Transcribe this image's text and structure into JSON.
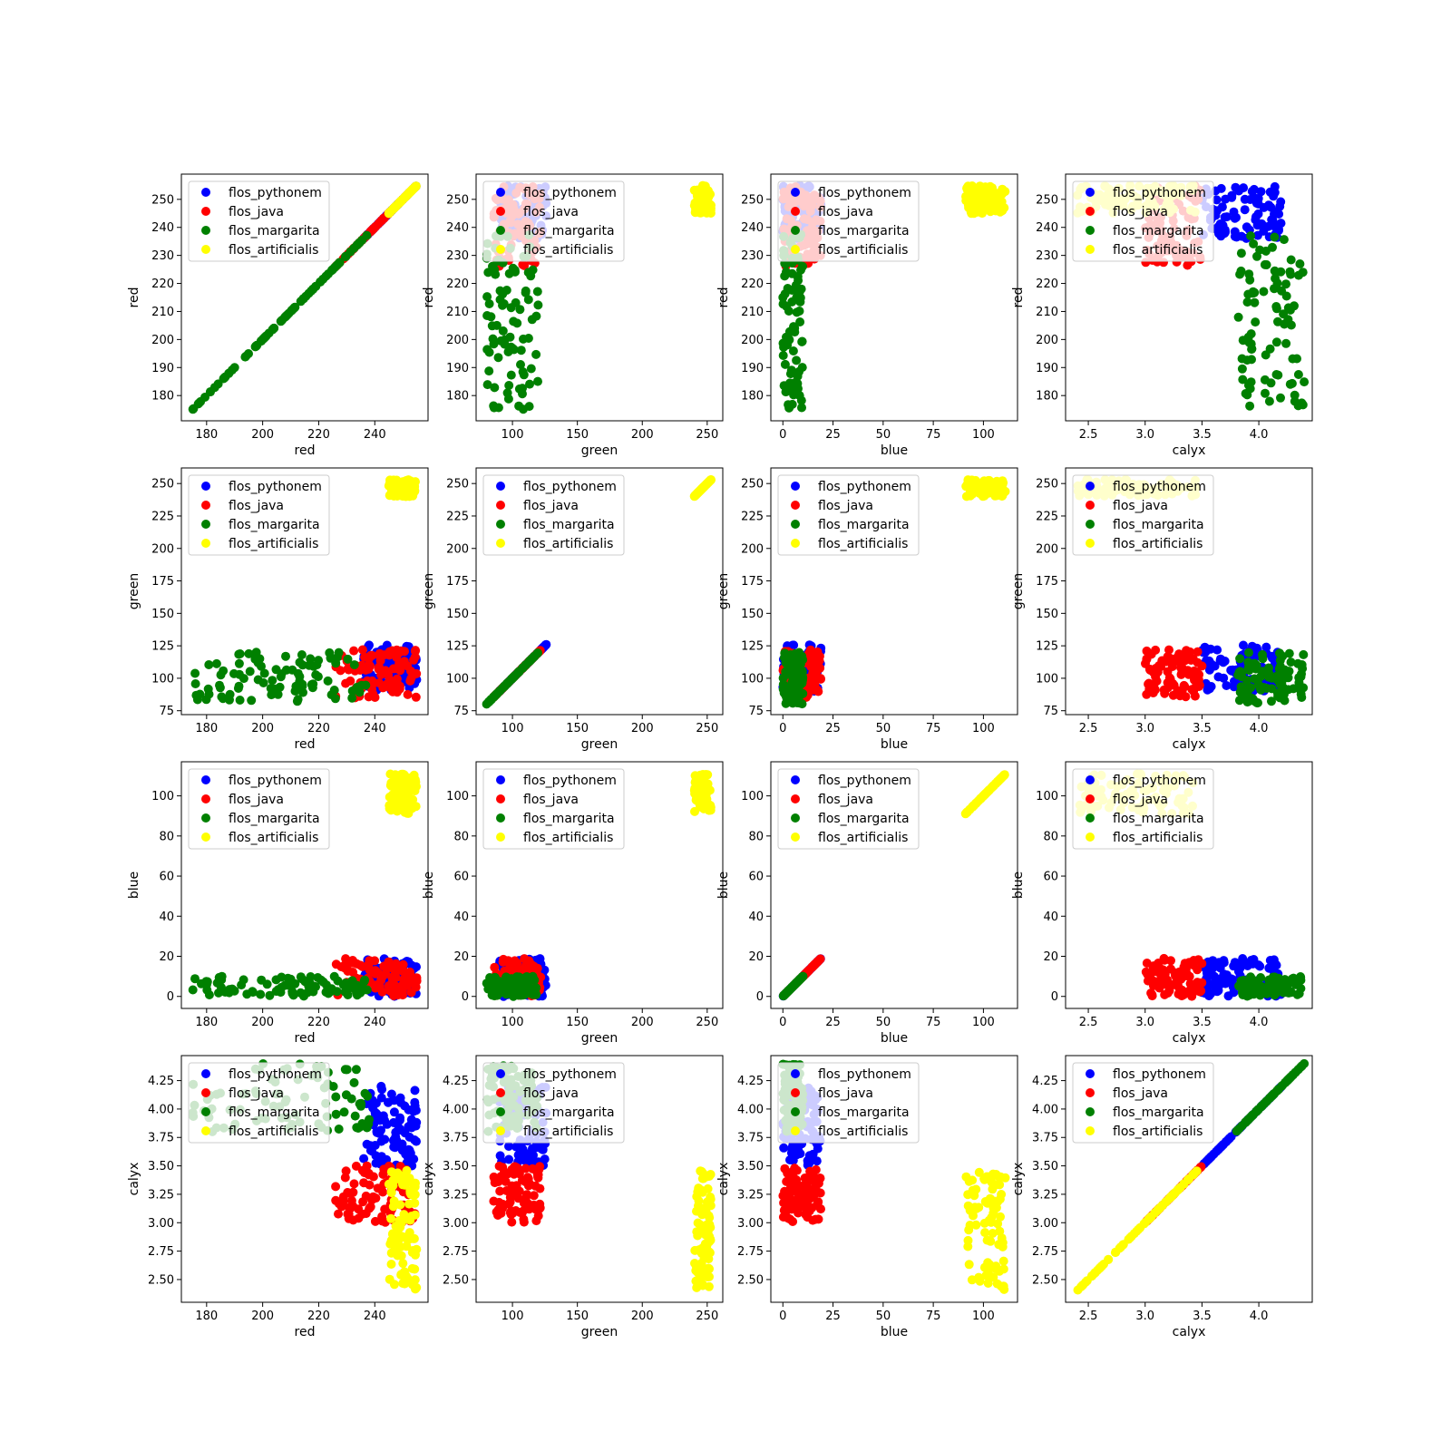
{
  "figure": {
    "layout": "4x4 scatter-matrix",
    "variables": [
      "red",
      "green",
      "blue",
      "calyx"
    ]
  },
  "legend": {
    "placement": "upper left",
    "entries": [
      "flos_pythonem",
      "flos_java",
      "flos_margarita",
      "flos_artificialis"
    ]
  },
  "colors": {
    "flos_pythonem": "#0000ff",
    "flos_java": "#ff0000",
    "flos_margarita": "#008000",
    "flos_artificialis": "#ffff00"
  },
  "chart_data": {
    "type": "scatter",
    "grid": false,
    "variables": [
      "red",
      "green",
      "blue",
      "calyx"
    ],
    "axis_ranges": {
      "red": [
        171,
        259
      ],
      "green": [
        72,
        262
      ],
      "blue": [
        -6,
        117
      ],
      "calyx": [
        2.3,
        4.47
      ]
    },
    "ticks": {
      "red": [
        "180",
        "190",
        "200",
        "210",
        "220",
        "230",
        "240",
        "250"
      ],
      "red_x": [
        "180",
        "200",
        "220",
        "240"
      ],
      "green": [
        "75",
        "100",
        "125",
        "150",
        "175",
        "200",
        "225",
        "250"
      ],
      "green_x": [
        "100",
        "150",
        "200",
        "250"
      ],
      "blue": [
        "0",
        "20",
        "40",
        "60",
        "80",
        "100"
      ],
      "blue_x": [
        "0",
        "25",
        "50",
        "75",
        "100"
      ],
      "calyx": [
        "2.50",
        "2.75",
        "3.00",
        "3.25",
        "3.50",
        "3.75",
        "4.00",
        "4.25"
      ],
      "calyx_x": [
        "2.5",
        "3.0",
        "3.5",
        "4.0"
      ]
    },
    "series": [
      {
        "name": "flos_pythonem",
        "color": "#0000ff",
        "ranges": {
          "red": [
            236,
            255
          ],
          "green": [
            90,
            126
          ],
          "blue": [
            0,
            19
          ],
          "calyx": [
            3.5,
            4.2
          ]
        }
      },
      {
        "name": "flos_java",
        "color": "#ff0000",
        "ranges": {
          "red": [
            226,
            255
          ],
          "green": [
            85,
            122
          ],
          "blue": [
            0,
            19
          ],
          "calyx": [
            3.0,
            3.5
          ]
        }
      },
      {
        "name": "flos_margarita",
        "color": "#008000",
        "ranges": {
          "red": [
            175,
            238
          ],
          "green": [
            80,
            120
          ],
          "blue": [
            0,
            10
          ],
          "calyx": [
            3.8,
            4.4
          ]
        }
      },
      {
        "name": "flos_artificialis",
        "color": "#ffff00",
        "ranges": {
          "red": [
            245,
            255
          ],
          "green": [
            240,
            253
          ],
          "blue": [
            91,
            111
          ],
          "calyx": [
            2.4,
            3.46
          ]
        }
      }
    ]
  }
}
